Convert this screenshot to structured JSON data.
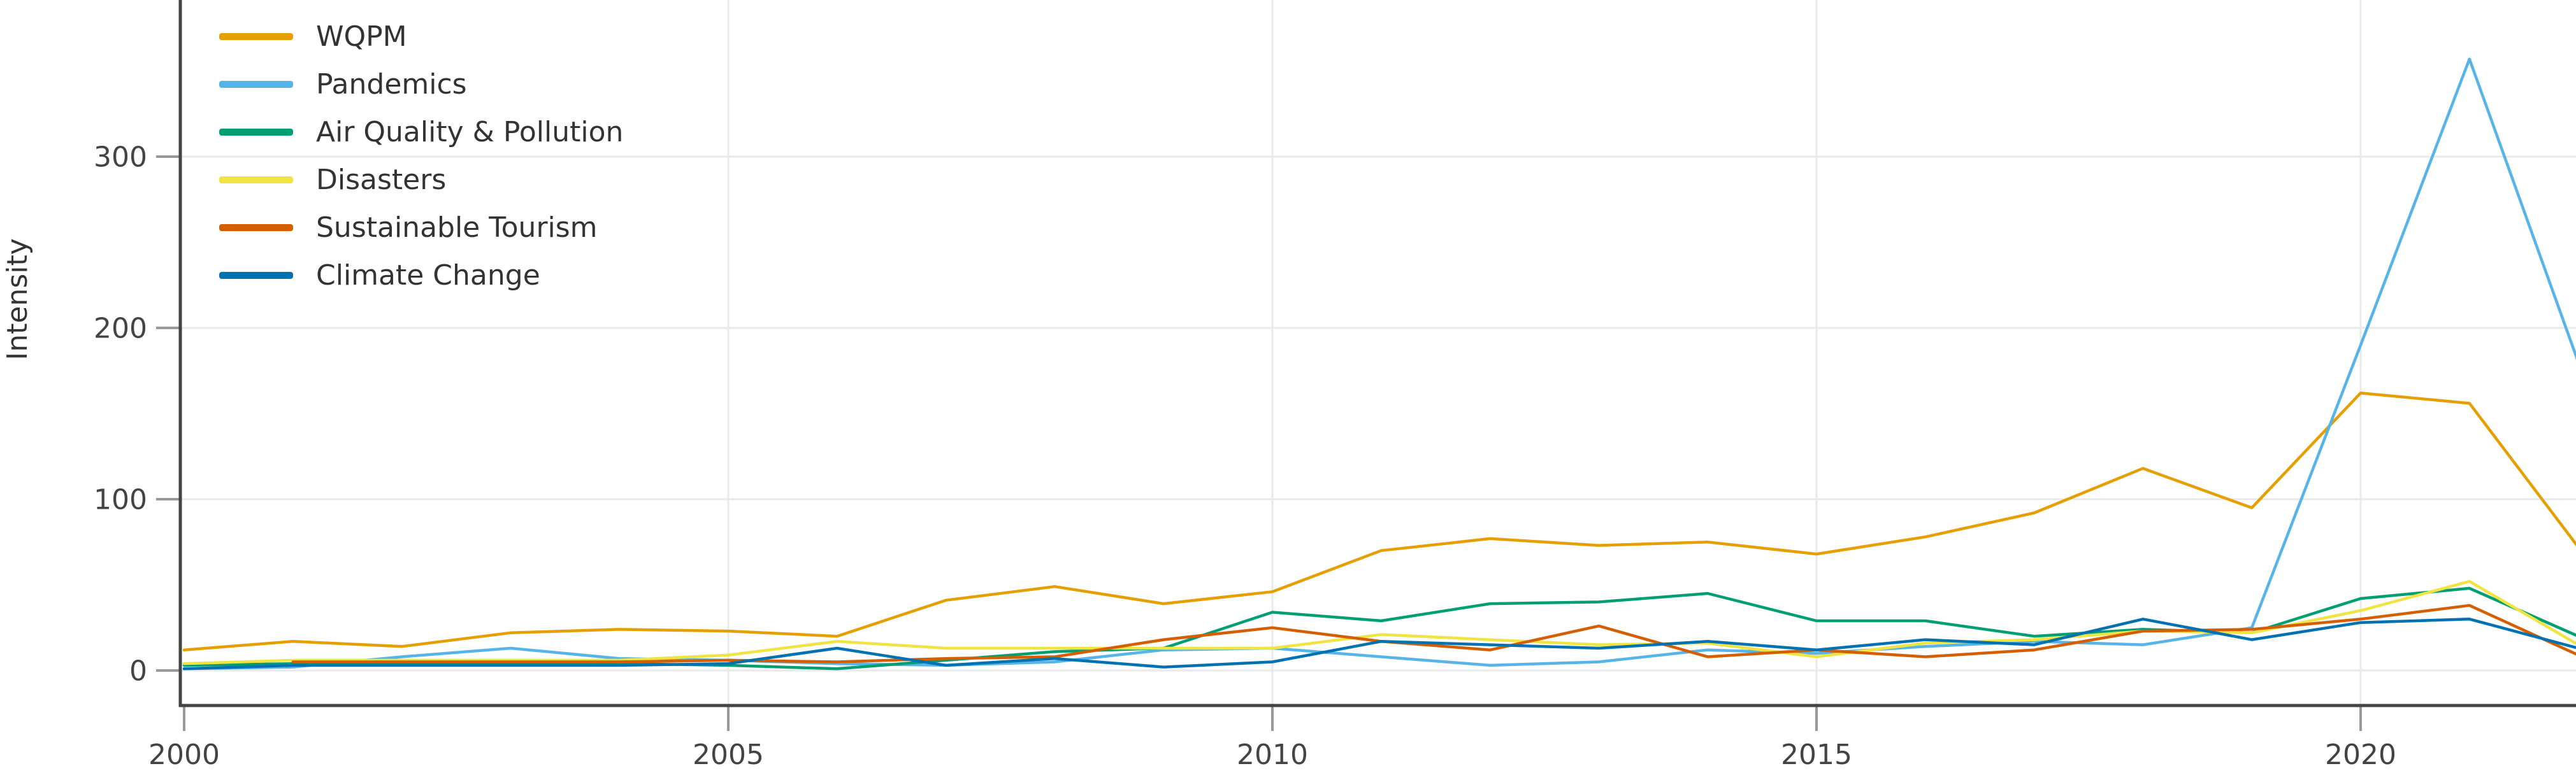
{
  "chart_data": {
    "type": "line",
    "title": "",
    "xlabel": "",
    "ylabel": "Intensity",
    "x": [
      2000,
      2001,
      2002,
      2003,
      2004,
      2005,
      2006,
      2007,
      2008,
      2009,
      2010,
      2011,
      2012,
      2013,
      2014,
      2015,
      2016,
      2017,
      2018,
      2019,
      2020,
      2021,
      2022
    ],
    "series": [
      {
        "name": "WQPM",
        "color": "#E69F00",
        "values": [
          12,
          17,
          14,
          22,
          24,
          23,
          20,
          41,
          49,
          39,
          46,
          70,
          77,
          73,
          75,
          68,
          78,
          92,
          118,
          95,
          162,
          156,
          72
        ]
      },
      {
        "name": "Pandemics",
        "color": "#56B4E9",
        "values": [
          1,
          2,
          8,
          13,
          7,
          6,
          4,
          3,
          5,
          12,
          13,
          8,
          3,
          5,
          12,
          10,
          14,
          17,
          15,
          25,
          190,
          357,
          180
        ]
      },
      {
        "name": "Air Quality & Pollution",
        "color": "#009E73",
        "values": [
          3,
          4,
          4,
          4,
          4,
          3,
          1,
          6,
          11,
          13,
          34,
          29,
          39,
          40,
          45,
          29,
          29,
          20,
          24,
          22,
          42,
          48,
          20
        ]
      },
      {
        "name": "Disasters",
        "color": "#F0E442",
        "values": [
          4,
          6,
          6,
          6,
          6,
          9,
          17,
          13,
          13,
          13,
          13,
          21,
          18,
          15,
          16,
          8,
          16,
          18,
          23,
          22,
          35,
          52,
          15
        ]
      },
      {
        "name": "Sustainable Tourism",
        "color": "#D55E00",
        "values": [
          null,
          5,
          5,
          5,
          5,
          6,
          5,
          7,
          8,
          18,
          25,
          17,
          12,
          26,
          8,
          12,
          8,
          12,
          23,
          24,
          30,
          38,
          9
        ]
      },
      {
        "name": "Climate Change",
        "color": "#0072B2",
        "values": [
          1,
          3,
          3,
          3,
          3,
          4,
          13,
          3,
          7,
          2,
          5,
          17,
          15,
          13,
          17,
          12,
          18,
          15,
          30,
          18,
          28,
          30,
          13
        ]
      }
    ],
    "yticks": [
      0,
      100,
      200,
      300
    ],
    "xticks": [
      2000,
      2005,
      2010,
      2015,
      2020
    ],
    "xlim": [
      2000,
      2022
    ],
    "ylim": [
      -20,
      391
    ],
    "grid": true,
    "legend_position": "top-left",
    "colors": {
      "background": "#FFFFFF",
      "axis_line": "#444444",
      "tick_mark": "#999999",
      "tick_label": "#444444",
      "gridline": "#E9E9E9",
      "axis_title": "#333333"
    }
  }
}
